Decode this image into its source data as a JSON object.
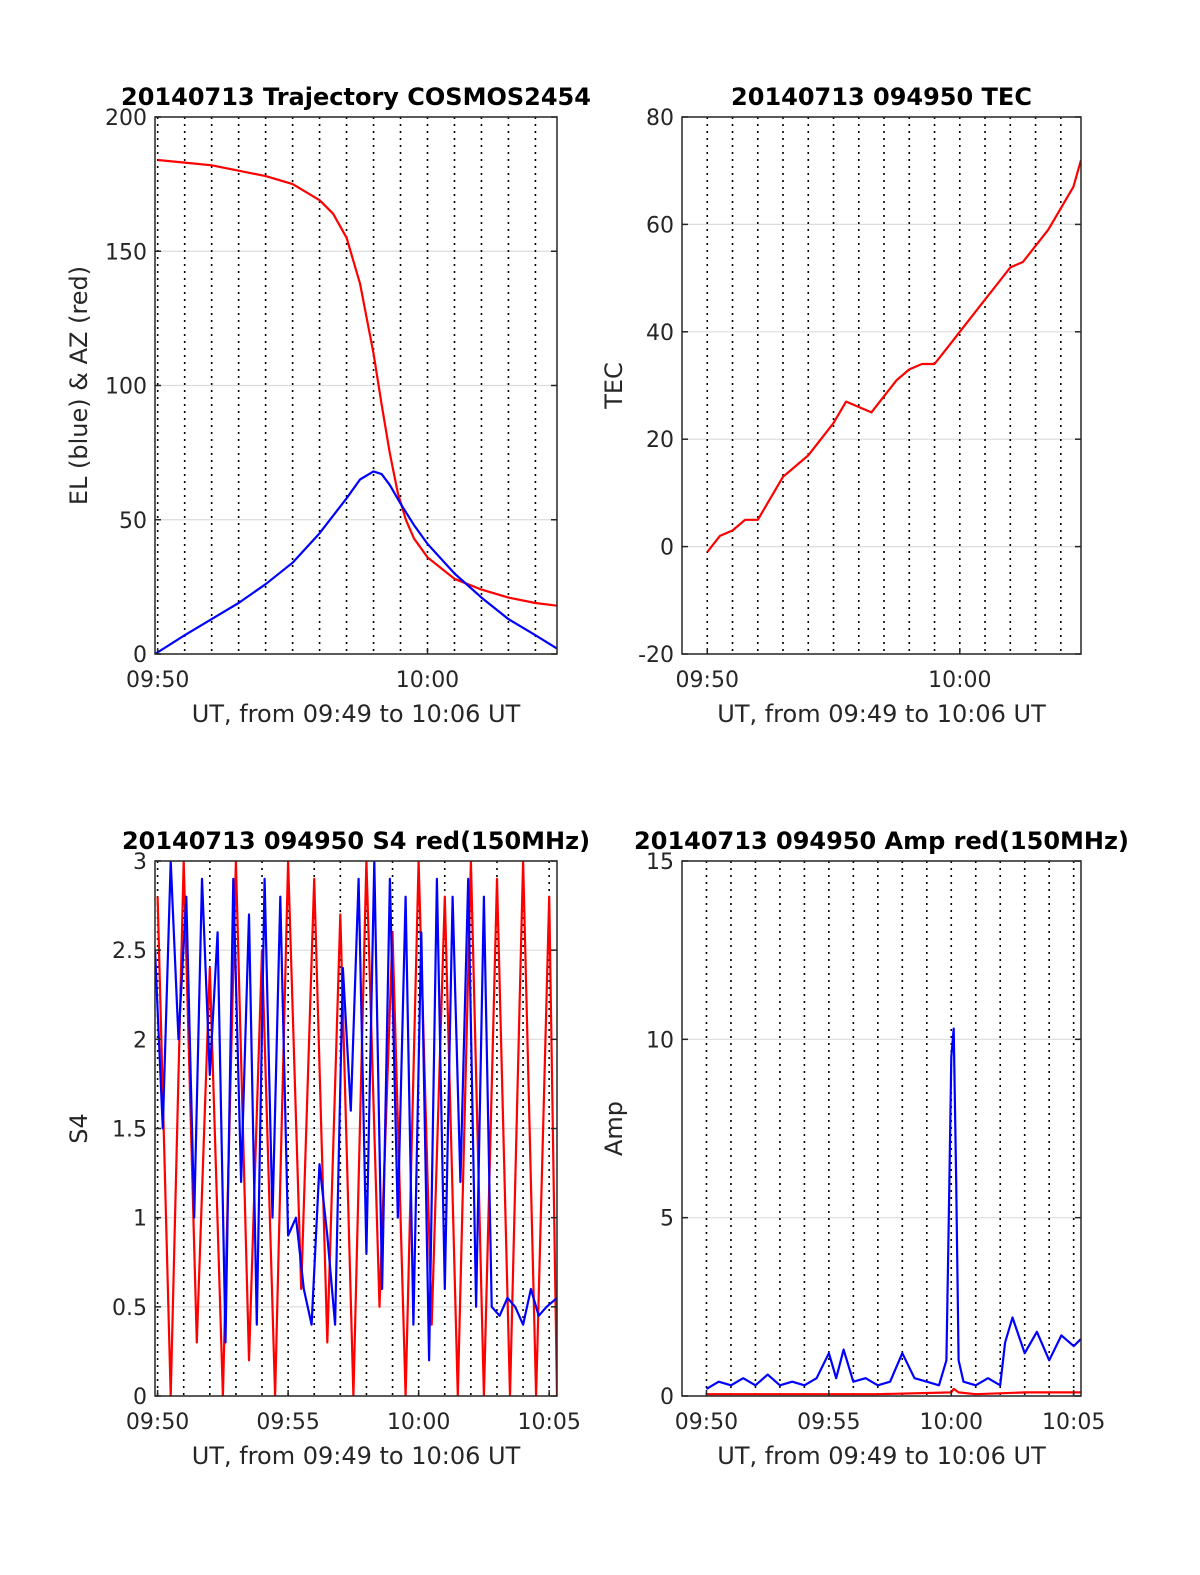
{
  "chart_data": [
    {
      "type": "line",
      "title": "20140713 Trajectory COSMOS2454",
      "xlabel": "UT, from 09:49 to 10:06 UT",
      "ylabel": "EL (blue) & AZ (red)",
      "x_unit": "minutes after 09:49 UT",
      "xlim": [
        0.9,
        15.8
      ],
      "ylim": [
        0,
        200
      ],
      "xticks": [
        1,
        11
      ],
      "xticklabels": [
        "09:50",
        "10:00"
      ],
      "yticks": [
        0,
        50,
        100,
        150,
        200
      ],
      "yticklabels": [
        "0",
        "50",
        "100",
        "150",
        "200"
      ],
      "grid": true,
      "series": [
        {
          "color": "#ff0000",
          "x": [
            1.0,
            2.0,
            3.0,
            4.0,
            5.0,
            6.0,
            7.0,
            7.5,
            8.0,
            8.5,
            9.0,
            9.3,
            9.6,
            9.9,
            10.2,
            10.5,
            11.0,
            11.5,
            12.0,
            13.0,
            14.0,
            15.0,
            15.8
          ],
          "y": [
            184,
            183,
            182,
            180,
            178,
            175,
            169,
            164,
            155,
            138,
            112,
            93,
            75,
            60,
            50,
            43,
            36,
            32,
            28,
            24,
            21,
            19,
            18
          ]
        },
        {
          "color": "#0000ff",
          "x": [
            0.9,
            2.0,
            3.0,
            4.0,
            5.0,
            6.0,
            7.0,
            8.0,
            8.5,
            9.0,
            9.3,
            9.6,
            10.0,
            10.5,
            11.0,
            12.0,
            13.0,
            14.0,
            15.0,
            15.8
          ],
          "y": [
            0,
            7,
            13,
            19,
            26,
            34,
            45,
            58,
            65,
            68,
            67,
            63,
            56,
            48,
            41,
            30,
            21,
            13,
            7,
            2
          ]
        }
      ]
    },
    {
      "type": "line",
      "title": "20140713 094950 TEC",
      "xlabel": "UT, from 09:49 to 10:06 UT",
      "ylabel": "TEC",
      "x_unit": "minutes after 09:49 UT",
      "xlim": [
        0.0,
        15.8
      ],
      "ylim": [
        -20,
        80
      ],
      "xticks": [
        1,
        11
      ],
      "xticklabels": [
        "09:50",
        "10:00"
      ],
      "yticks": [
        -20,
        0,
        20,
        40,
        60,
        80
      ],
      "yticklabels": [
        "-20",
        "0",
        "20",
        "40",
        "60",
        "80"
      ],
      "grid": true,
      "series": [
        {
          "color": "#ff0000",
          "x": [
            1.0,
            1.5,
            2.0,
            2.5,
            3.0,
            3.5,
            4.0,
            4.5,
            5.0,
            5.5,
            6.0,
            6.5,
            7.0,
            7.5,
            8.0,
            8.5,
            9.0,
            9.5,
            10.0,
            10.5,
            11.0,
            11.5,
            12.0,
            12.5,
            13.0,
            13.5,
            14.0,
            14.5,
            15.0,
            15.5,
            15.8
          ],
          "y": [
            -1,
            2,
            3,
            5,
            5,
            9,
            13,
            15,
            17,
            20,
            23,
            27,
            26,
            25,
            28,
            31,
            33,
            34,
            34,
            37,
            40,
            43,
            46,
            49,
            52,
            53,
            56,
            59,
            63,
            67,
            72
          ]
        }
      ]
    },
    {
      "type": "line",
      "title": "20140713 094950 S4 red(150MHz)",
      "xlabel": "UT, from 09:49 to 10:06 UT",
      "ylabel": "S4",
      "x_unit": "minutes after 09:49 UT",
      "xlim": [
        0.9,
        16.3
      ],
      "ylim": [
        0,
        3
      ],
      "xticks": [
        1,
        6,
        11,
        16
      ],
      "xticklabels": [
        "09:50",
        "09:55",
        "10:00",
        "10:05"
      ],
      "yticks": [
        0,
        0.5,
        1,
        1.5,
        2,
        2.5,
        3
      ],
      "yticklabels": [
        "0",
        "0.5",
        "1",
        "1.5",
        "2",
        "2.5",
        "3"
      ],
      "grid": true,
      "series": [
        {
          "color": "#ff0000",
          "x": [
            1.0,
            1.5,
            2.0,
            2.5,
            3.0,
            3.5,
            4.0,
            4.5,
            5.0,
            5.5,
            6.0,
            6.5,
            7.0,
            7.5,
            8.0,
            8.5,
            9.0,
            9.5,
            10.0,
            10.5,
            11.0,
            11.5,
            12.0,
            12.5,
            13.0,
            13.5,
            14.0,
            14.5,
            15.0,
            15.5,
            16.0,
            16.3
          ],
          "y": [
            2.8,
            0,
            3,
            0.3,
            2.4,
            0,
            3,
            0.2,
            2.5,
            0,
            3,
            0.6,
            2.9,
            0.3,
            2.7,
            0,
            3,
            0.5,
            2.6,
            0,
            3,
            0.4,
            2.8,
            0,
            3,
            0,
            2.9,
            0,
            3,
            0,
            2.8,
            0
          ]
        },
        {
          "color": "#0000ff",
          "x": [
            0.9,
            1.2,
            1.5,
            1.8,
            2.1,
            2.4,
            2.7,
            3.0,
            3.3,
            3.6,
            3.9,
            4.2,
            4.5,
            4.8,
            5.1,
            5.4,
            5.7,
            6.0,
            6.3,
            6.6,
            6.9,
            7.2,
            7.5,
            7.8,
            8.1,
            8.4,
            8.7,
            9.0,
            9.3,
            9.6,
            9.9,
            10.2,
            10.5,
            10.8,
            11.1,
            11.4,
            11.7,
            12.0,
            12.3,
            12.6,
            12.9,
            13.2,
            13.5,
            13.8,
            14.1,
            14.4,
            14.7,
            15.0,
            15.3,
            15.6,
            15.9,
            16.3
          ],
          "y": [
            2.5,
            1.5,
            3,
            2.0,
            2.8,
            1.0,
            2.9,
            1.8,
            2.6,
            0.3,
            2.9,
            1.2,
            2.7,
            0.4,
            2.9,
            1.0,
            2.8,
            0.9,
            1.0,
            0.6,
            0.4,
            1.3,
            0.9,
            0.4,
            2.4,
            1.6,
            2.9,
            0.8,
            3,
            0.6,
            2.9,
            1.0,
            2.8,
            0.4,
            2.6,
            0.2,
            2.9,
            0.6,
            2.8,
            1.2,
            2.9,
            0.5,
            2.8,
            0.5,
            0.45,
            0.55,
            0.5,
            0.4,
            0.6,
            0.45,
            0.5,
            0.55
          ]
        }
      ]
    },
    {
      "type": "line",
      "title": "20140713 094950 Amp red(150MHz)",
      "xlabel": "UT, from 09:49 to 10:06 UT",
      "ylabel": "Amp",
      "x_unit": "minutes after 09:49 UT",
      "xlim": [
        0.0,
        16.3
      ],
      "ylim": [
        0,
        15
      ],
      "xticks": [
        1,
        6,
        11,
        16
      ],
      "xticklabels": [
        "09:50",
        "09:55",
        "10:00",
        "10:05"
      ],
      "yticks": [
        0,
        5,
        10,
        15
      ],
      "yticklabels": [
        "0",
        "5",
        "10",
        "15"
      ],
      "grid": true,
      "series": [
        {
          "color": "#ff0000",
          "x": [
            1.0,
            4.0,
            8.0,
            11.0,
            11.1,
            11.3,
            12.0,
            14.0,
            15.0,
            16.3
          ],
          "y": [
            0.05,
            0.05,
            0.05,
            0.1,
            0.2,
            0.1,
            0.05,
            0.1,
            0.1,
            0.1
          ]
        },
        {
          "color": "#0000ff",
          "x": [
            1.0,
            1.5,
            2.0,
            2.5,
            3.0,
            3.5,
            4.0,
            4.5,
            5.0,
            5.5,
            6.0,
            6.3,
            6.6,
            7.0,
            7.5,
            8.0,
            8.5,
            9.0,
            9.5,
            10.0,
            10.5,
            10.8,
            10.9,
            11.0,
            11.1,
            11.2,
            11.3,
            11.5,
            12.0,
            12.5,
            13.0,
            13.2,
            13.5,
            14.0,
            14.5,
            15.0,
            15.5,
            16.0,
            16.3
          ],
          "y": [
            0.2,
            0.4,
            0.3,
            0.5,
            0.3,
            0.6,
            0.3,
            0.4,
            0.3,
            0.5,
            1.2,
            0.5,
            1.3,
            0.4,
            0.5,
            0.3,
            0.4,
            1.2,
            0.5,
            0.4,
            0.3,
            1.0,
            5.0,
            9.5,
            10.3,
            6.0,
            1.0,
            0.4,
            0.3,
            0.5,
            0.3,
            1.5,
            2.2,
            1.2,
            1.8,
            1.0,
            1.7,
            1.4,
            1.6
          ]
        }
      ]
    }
  ]
}
